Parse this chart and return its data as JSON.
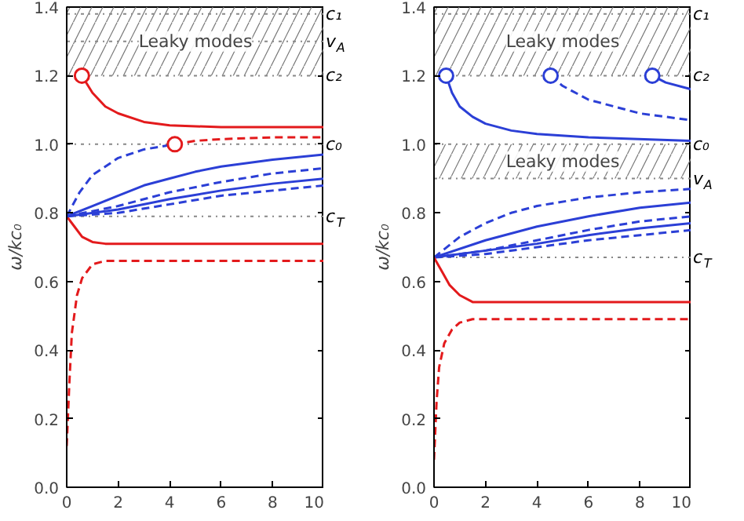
{
  "chart_data": [
    {
      "type": "line",
      "ylabel": "ω/kc₀",
      "xlim": [
        0,
        10
      ],
      "ylim": [
        0,
        1.4
      ],
      "xticks": [
        0,
        2,
        4,
        6,
        8,
        10
      ],
      "yticks": [
        {
          "value": 0,
          "label": "0.0"
        },
        {
          "value": 0.2,
          "label": "0.2"
        },
        {
          "value": 0.4,
          "label": "0.4"
        },
        {
          "value": 0.6,
          "label": "0.6"
        },
        {
          "value": 0.8,
          "label": "0.8"
        },
        {
          "value": 1.0,
          "label": "1.0"
        },
        {
          "value": 1.2,
          "label": "1.2"
        },
        {
          "value": 1.4,
          "label": "1.4"
        }
      ],
      "grid": false,
      "ref_lines": [
        {
          "axis": "y",
          "value": 1.38,
          "label": "c₁",
          "color": "#888888",
          "line_style": "dotted"
        },
        {
          "axis": "y",
          "value": 1.3,
          "label": "v$_{A}$",
          "color": "#888888",
          "line_style": "dotted"
        },
        {
          "axis": "y",
          "value": 1.2,
          "label": "c₂",
          "color": "#888888",
          "line_style": "dotted"
        },
        {
          "axis": "y",
          "value": 1.0,
          "label": "c₀",
          "color": "#888888",
          "line_style": "dotted"
        },
        {
          "axis": "y",
          "value": 0.79,
          "label": "c$_{T}$",
          "color": "#888888",
          "line_style": "dotted"
        }
      ],
      "bands": [
        {
          "axis": "y",
          "from": 1.2,
          "to": 1.4,
          "label": "Leaky modes"
        }
      ],
      "series": [
        {
          "color": "#e31a1c",
          "line_style": "solid",
          "x": [
            0.59,
            1,
            1.5,
            2,
            3,
            4,
            6,
            10
          ],
          "values": [
            1.2,
            1.15,
            1.11,
            1.09,
            1.065,
            1.055,
            1.05,
            1.05
          ]
        },
        {
          "color": "#e31a1c",
          "line_style": "dashed",
          "x": [
            4.2,
            5,
            6,
            8,
            10
          ],
          "values": [
            1.0,
            1.01,
            1.015,
            1.02,
            1.02
          ]
        },
        {
          "color": "#e31a1c",
          "line_style": "solid",
          "x": [
            0,
            0.3,
            0.6,
            1,
            1.5,
            10
          ],
          "values": [
            0.79,
            0.76,
            0.73,
            0.715,
            0.71,
            0.71
          ]
        },
        {
          "color": "#e31a1c",
          "line_style": "dashed",
          "x": [
            0,
            0.1,
            0.2,
            0.4,
            0.6,
            1,
            1.5,
            10
          ],
          "values": [
            0.12,
            0.3,
            0.45,
            0.56,
            0.61,
            0.65,
            0.66,
            0.66
          ]
        },
        {
          "color": "#2b3fd6",
          "line_style": "dashed",
          "x": [
            0,
            0.5,
            1,
            2,
            3,
            4.2
          ],
          "values": [
            0.79,
            0.86,
            0.91,
            0.96,
            0.985,
            1.0
          ]
        },
        {
          "color": "#2b3fd6",
          "line_style": "solid",
          "x": [
            0,
            1,
            2,
            3,
            4,
            5,
            6,
            8,
            10
          ],
          "values": [
            0.79,
            0.82,
            0.85,
            0.88,
            0.9,
            0.92,
            0.935,
            0.955,
            0.97
          ]
        },
        {
          "color": "#2b3fd6",
          "line_style": "dashed",
          "x": [
            0,
            2,
            4,
            6,
            8,
            10
          ],
          "values": [
            0.79,
            0.82,
            0.86,
            0.89,
            0.915,
            0.93
          ]
        },
        {
          "color": "#2b3fd6",
          "line_style": "solid",
          "x": [
            0,
            2,
            4,
            6,
            8,
            10
          ],
          "values": [
            0.79,
            0.81,
            0.84,
            0.865,
            0.885,
            0.9
          ]
        },
        {
          "color": "#2b3fd6",
          "line_style": "dashed",
          "x": [
            0,
            2,
            4,
            6,
            8,
            10
          ],
          "values": [
            0.79,
            0.8,
            0.825,
            0.85,
            0.865,
            0.88
          ]
        },
        {
          "type": "scatter",
          "marker": "circle",
          "color": "#e31a1c",
          "x": [
            0.59,
            4.2
          ],
          "values": [
            1.2,
            1.0
          ]
        }
      ]
    },
    {
      "type": "line",
      "ylabel": "ω/kc₀",
      "xlim": [
        0,
        10
      ],
      "ylim": [
        0,
        1.4
      ],
      "xticks": [
        0,
        2,
        4,
        6,
        8,
        10
      ],
      "yticks": [
        {
          "value": 0,
          "label": "0.0"
        },
        {
          "value": 0.2,
          "label": "0.2"
        },
        {
          "value": 0.4,
          "label": "0.4"
        },
        {
          "value": 0.6,
          "label": "0.6"
        },
        {
          "value": 0.8,
          "label": "0.8"
        },
        {
          "value": 1.0,
          "label": "1.0"
        },
        {
          "value": 1.2,
          "label": "1.2"
        },
        {
          "value": 1.4,
          "label": "1.4"
        }
      ],
      "grid": false,
      "ref_lines": [
        {
          "axis": "y",
          "value": 1.38,
          "label": "c₁",
          "color": "#888888",
          "line_style": "dotted"
        },
        {
          "axis": "y",
          "value": 1.2,
          "label": "c₂",
          "color": "#888888",
          "line_style": "dotted"
        },
        {
          "axis": "y",
          "value": 1.0,
          "label": "c₀",
          "color": "#888888",
          "line_style": "dotted"
        },
        {
          "axis": "y",
          "value": 0.9,
          "label": "v$_{A}$",
          "color": "#888888",
          "line_style": "dotted"
        },
        {
          "axis": "y",
          "value": 0.67,
          "label": "c$_{T}$",
          "color": "#888888",
          "line_style": "dotted"
        }
      ],
      "bands": [
        {
          "axis": "y",
          "from": 1.2,
          "to": 1.4,
          "label": "Leaky modes"
        },
        {
          "axis": "y",
          "from": 0.9,
          "to": 1.0,
          "label": "Leaky modes"
        }
      ],
      "series": [
        {
          "color": "#2b3fd6",
          "line_style": "solid",
          "x": [
            0.47,
            0.7,
            1,
            1.5,
            2,
            3,
            4,
            6,
            10
          ],
          "values": [
            1.2,
            1.15,
            1.11,
            1.08,
            1.06,
            1.04,
            1.03,
            1.02,
            1.01
          ]
        },
        {
          "color": "#2b3fd6",
          "line_style": "dashed",
          "x": [
            4.53,
            5,
            6,
            7,
            8,
            10
          ],
          "values": [
            1.2,
            1.17,
            1.13,
            1.11,
            1.09,
            1.07
          ]
        },
        {
          "color": "#2b3fd6",
          "line_style": "solid",
          "x": [
            8.48,
            9,
            10
          ],
          "values": [
            1.2,
            1.18,
            1.16
          ]
        },
        {
          "color": "#2b3fd6",
          "line_style": "dashed",
          "x": [
            0,
            1,
            2,
            3,
            4,
            6,
            8,
            10
          ],
          "values": [
            0.67,
            0.73,
            0.77,
            0.8,
            0.82,
            0.845,
            0.86,
            0.87
          ]
        },
        {
          "color": "#2b3fd6",
          "line_style": "solid",
          "x": [
            0,
            2,
            4,
            6,
            8,
            10
          ],
          "values": [
            0.67,
            0.72,
            0.76,
            0.79,
            0.815,
            0.83
          ]
        },
        {
          "color": "#2b3fd6",
          "line_style": "dashed",
          "x": [
            0,
            2,
            4,
            6,
            8,
            10
          ],
          "values": [
            0.67,
            0.69,
            0.72,
            0.75,
            0.775,
            0.79
          ]
        },
        {
          "color": "#2b3fd6",
          "line_style": "solid",
          "x": [
            0,
            2,
            4,
            6,
            8,
            10
          ],
          "values": [
            0.67,
            0.69,
            0.71,
            0.735,
            0.755,
            0.77
          ]
        },
        {
          "color": "#2b3fd6",
          "line_style": "dashed",
          "x": [
            0,
            2,
            4,
            6,
            8,
            10
          ],
          "values": [
            0.67,
            0.68,
            0.7,
            0.72,
            0.735,
            0.75
          ]
        },
        {
          "color": "#e31a1c",
          "line_style": "solid",
          "x": [
            0,
            0.3,
            0.6,
            1,
            1.5,
            10
          ],
          "values": [
            0.67,
            0.63,
            0.59,
            0.56,
            0.54,
            0.54
          ]
        },
        {
          "color": "#e31a1c",
          "line_style": "dashed",
          "x": [
            0,
            0.1,
            0.2,
            0.4,
            0.7,
            1,
            1.5,
            10
          ],
          "values": [
            0.08,
            0.25,
            0.35,
            0.42,
            0.46,
            0.48,
            0.49,
            0.49
          ]
        },
        {
          "type": "scatter",
          "marker": "circle",
          "color": "#2b3fd6",
          "x": [
            0.47,
            4.53,
            8.48
          ],
          "values": [
            1.2,
            1.2,
            1.2
          ]
        }
      ]
    }
  ]
}
